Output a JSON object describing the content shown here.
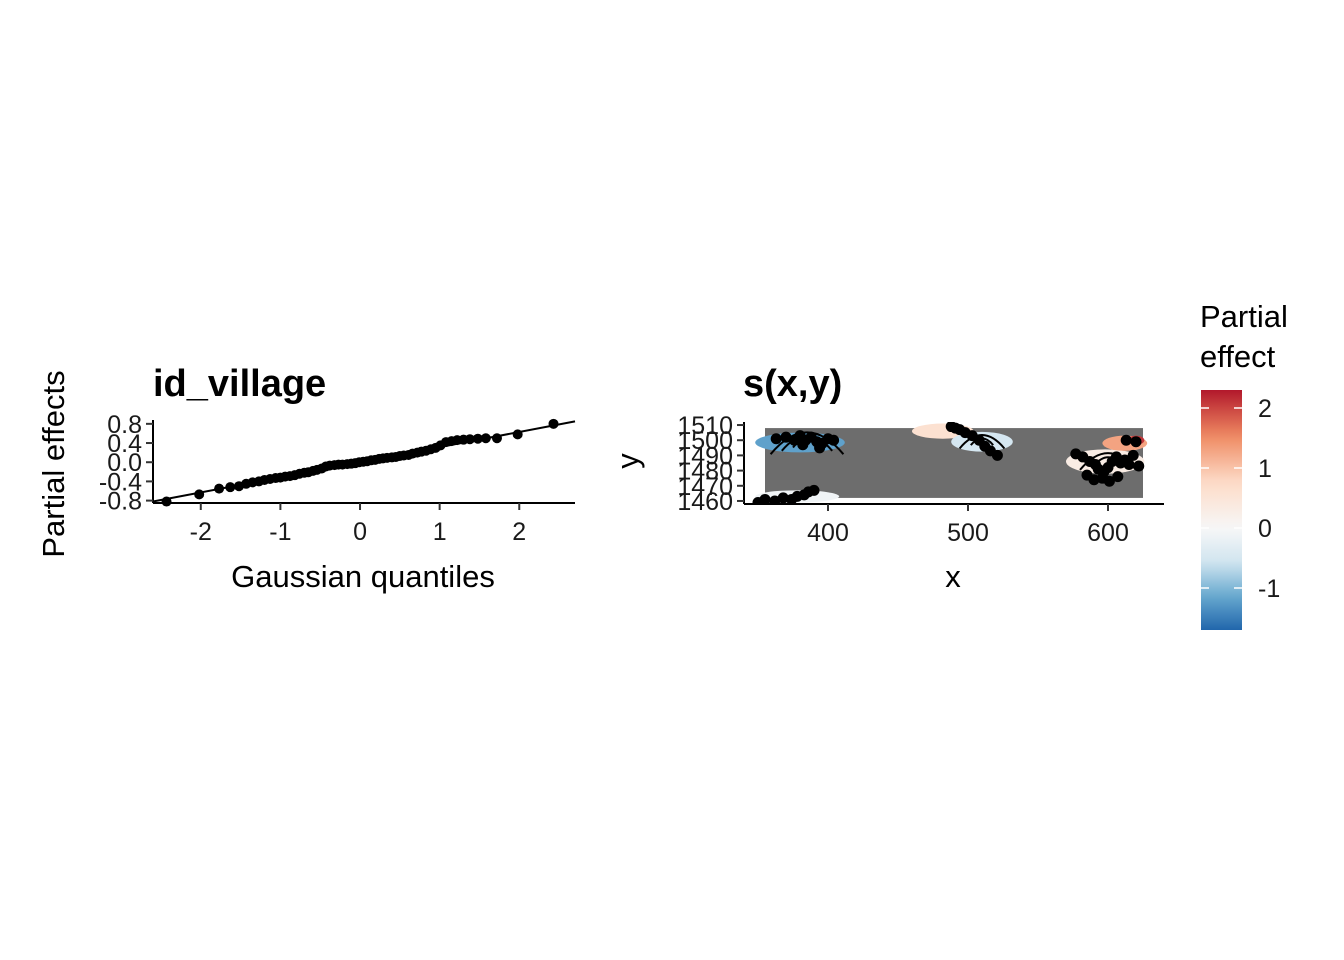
{
  "chart_data": [
    {
      "type": "scatter",
      "title": "id_village",
      "xlabel": "Gaussian quantiles",
      "ylabel": "Partial effects",
      "xlim": [
        -2.6,
        2.7
      ],
      "ylim": [
        -0.85,
        0.88
      ],
      "x_ticks": [
        -2,
        -1,
        0,
        1,
        2
      ],
      "x_tick_labels": [
        "-2",
        "-1",
        "0",
        "1",
        "2"
      ],
      "y_ticks": [
        -0.8,
        -0.4,
        0.0,
        0.4,
        0.8
      ],
      "y_tick_labels": [
        "-0.8",
        "-0.4",
        "0.0",
        "0.4",
        "0.8"
      ],
      "reference_line": {
        "intercept": 0.0,
        "slope": 0.315
      },
      "series": [
        {
          "x": [
            -2.43,
            -2.02,
            -1.77,
            -1.63,
            -1.52,
            -1.43,
            -1.35,
            -1.27,
            -1.2,
            -1.13,
            -1.06,
            -1.0,
            -0.94,
            -0.88,
            -0.82,
            -0.76,
            -0.7,
            -0.65,
            -0.59,
            -0.54,
            -0.48,
            -0.43,
            -0.38,
            -0.32,
            -0.27,
            -0.22,
            -0.16,
            -0.11,
            -0.06,
            -0.01,
            0.04,
            0.09,
            0.14,
            0.19,
            0.24,
            0.29,
            0.34,
            0.4,
            0.45,
            0.5,
            0.55,
            0.61,
            0.66,
            0.72,
            0.77,
            0.83,
            0.89,
            0.95,
            1.01,
            1.08,
            1.15,
            1.22,
            1.3,
            1.38,
            1.48,
            1.58,
            1.72,
            1.98,
            2.43
          ],
          "y": [
            -0.82,
            -0.67,
            -0.55,
            -0.52,
            -0.5,
            -0.45,
            -0.42,
            -0.4,
            -0.37,
            -0.35,
            -0.33,
            -0.32,
            -0.3,
            -0.29,
            -0.27,
            -0.24,
            -0.22,
            -0.21,
            -0.18,
            -0.16,
            -0.13,
            -0.09,
            -0.07,
            -0.06,
            -0.05,
            -0.05,
            -0.04,
            -0.03,
            -0.02,
            0.0,
            0.01,
            0.02,
            0.04,
            0.05,
            0.07,
            0.08,
            0.09,
            0.1,
            0.11,
            0.13,
            0.14,
            0.15,
            0.18,
            0.2,
            0.22,
            0.24,
            0.27,
            0.3,
            0.35,
            0.42,
            0.44,
            0.46,
            0.47,
            0.48,
            0.49,
            0.5,
            0.5,
            0.58,
            0.8
          ]
        }
      ]
    },
    {
      "type": "heatmap",
      "title": "s(x,y)",
      "xlabel": "x",
      "ylabel": "y",
      "xlim": [
        340,
        640
      ],
      "ylim": [
        1458,
        1512
      ],
      "x_ticks": [
        400,
        500,
        600
      ],
      "x_tick_labels": [
        "400",
        "500",
        "600"
      ],
      "y_ticks": [
        1460,
        1470,
        1480,
        1490,
        1500,
        1510
      ],
      "y_tick_labels": [
        "1460",
        "1470",
        "1480",
        "1490",
        "1500",
        "1510"
      ],
      "background_color": "#6d6d6d",
      "legend": {
        "title": "Partial effect",
        "placement": "right",
        "range": [
          -1.7,
          2.3
        ],
        "ticks": [
          -1,
          0,
          1,
          2
        ],
        "tick_labels": [
          "-1",
          "0",
          "1",
          "2"
        ],
        "colors": [
          "#2166ac",
          "#67a9cf",
          "#d1e5f0",
          "#f7f7f7",
          "#fddbc7",
          "#ef8a62",
          "#b2182b"
        ]
      },
      "regions": [
        {
          "center": [
            380,
            1498.5
          ],
          "rx": 32,
          "ry": 6.5,
          "value": -1.2
        },
        {
          "center": [
            378,
            1463
          ],
          "rx": 30,
          "ry": 4,
          "value": -0.1
        },
        {
          "center": [
            482,
            1506
          ],
          "rx": 22,
          "ry": 5,
          "value": 0.6
        },
        {
          "center": [
            510,
            1499
          ],
          "rx": 22,
          "ry": 6.5,
          "value": -0.5
        },
        {
          "center": [
            598,
            1486
          ],
          "rx": 28,
          "ry": 8,
          "value": 0.3
        },
        {
          "center": [
            612,
            1498
          ],
          "rx": 16,
          "ry": 5,
          "value": 1.3
        },
        {
          "center": [
            620,
            1500
          ],
          "rx": 6,
          "ry": 3,
          "value": 2.1
        }
      ],
      "points": [
        {
          "x": 350,
          "y": 1459
        },
        {
          "x": 355,
          "y": 1461
        },
        {
          "x": 362,
          "y": 1460
        },
        {
          "x": 368,
          "y": 1462
        },
        {
          "x": 374,
          "y": 1461
        },
        {
          "x": 378,
          "y": 1463
        },
        {
          "x": 383,
          "y": 1464
        },
        {
          "x": 386,
          "y": 1466
        },
        {
          "x": 390,
          "y": 1467
        },
        {
          "x": 363,
          "y": 1501
        },
        {
          "x": 370,
          "y": 1502
        },
        {
          "x": 376,
          "y": 1500
        },
        {
          "x": 380,
          "y": 1503
        },
        {
          "x": 384,
          "y": 1500
        },
        {
          "x": 388,
          "y": 1502
        },
        {
          "x": 392,
          "y": 1499
        },
        {
          "x": 396,
          "y": 1498
        },
        {
          "x": 400,
          "y": 1501
        },
        {
          "x": 404,
          "y": 1500
        },
        {
          "x": 382,
          "y": 1497
        },
        {
          "x": 394,
          "y": 1495
        },
        {
          "x": 488,
          "y": 1509
        },
        {
          "x": 491,
          "y": 1508
        },
        {
          "x": 494,
          "y": 1507
        },
        {
          "x": 498,
          "y": 1505
        },
        {
          "x": 503,
          "y": 1503
        },
        {
          "x": 508,
          "y": 1500
        },
        {
          "x": 512,
          "y": 1496
        },
        {
          "x": 516,
          "y": 1493
        },
        {
          "x": 521,
          "y": 1490
        },
        {
          "x": 577,
          "y": 1491
        },
        {
          "x": 582,
          "y": 1489
        },
        {
          "x": 587,
          "y": 1486
        },
        {
          "x": 591,
          "y": 1484
        },
        {
          "x": 593,
          "y": 1481
        },
        {
          "x": 597,
          "y": 1479
        },
        {
          "x": 600,
          "y": 1482
        },
        {
          "x": 603,
          "y": 1486
        },
        {
          "x": 606,
          "y": 1489
        },
        {
          "x": 609,
          "y": 1485
        },
        {
          "x": 612,
          "y": 1487
        },
        {
          "x": 615,
          "y": 1484
        },
        {
          "x": 618,
          "y": 1490
        },
        {
          "x": 622,
          "y": 1483
        },
        {
          "x": 596,
          "y": 1475
        },
        {
          "x": 601,
          "y": 1473
        },
        {
          "x": 607,
          "y": 1476
        },
        {
          "x": 613,
          "y": 1500
        },
        {
          "x": 620,
          "y": 1499
        },
        {
          "x": 585,
          "y": 1477
        },
        {
          "x": 590,
          "y": 1474
        }
      ],
      "contours": [
        {
          "type": "arc",
          "center": [
            385,
            1498
          ],
          "r": [
            10,
            18,
            26
          ]
        },
        {
          "type": "arc",
          "center": [
            510,
            1499
          ],
          "r": [
            8,
            16
          ]
        },
        {
          "type": "arc",
          "center": [
            600,
            1486
          ],
          "r": [
            10,
            20
          ]
        }
      ]
    }
  ]
}
